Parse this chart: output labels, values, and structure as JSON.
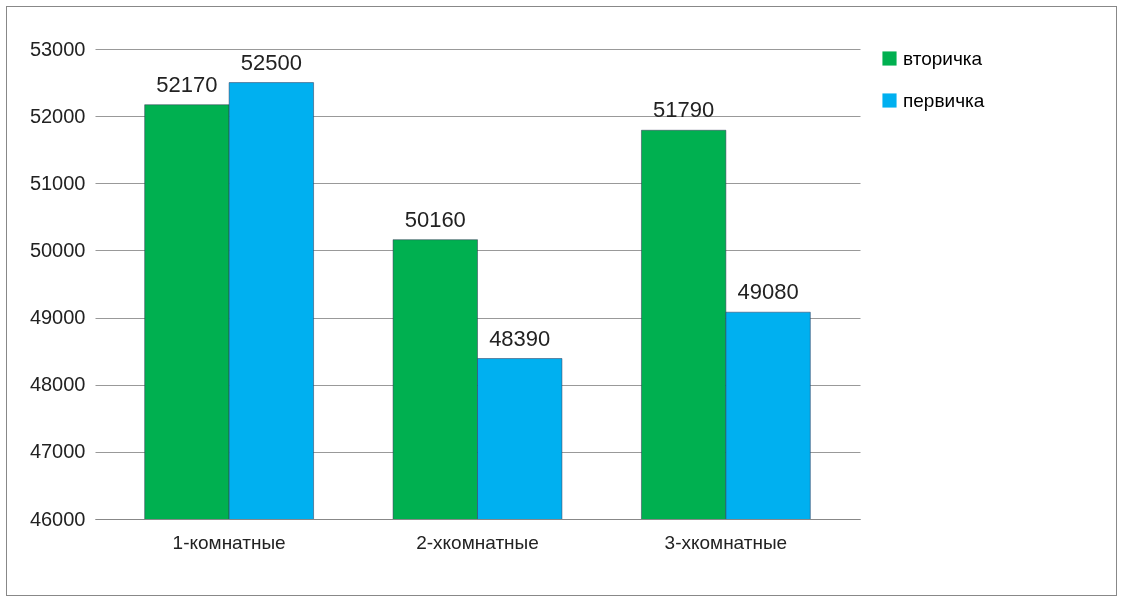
{
  "chart_data": {
    "type": "bar",
    "categories": [
      "1-комнатные",
      "2-хкомнатные",
      "3-хкомнатные"
    ],
    "series": [
      {
        "name": "вторичка",
        "color": "#00b050",
        "values": [
          52170,
          50160,
          51790
        ]
      },
      {
        "name": "первичка",
        "color": "#00b0f0",
        "values": [
          52500,
          48390,
          49080
        ]
      }
    ],
    "ylim": [
      46000,
      53000
    ],
    "yticks": [
      46000,
      47000,
      48000,
      49000,
      50000,
      51000,
      52000,
      53000
    ],
    "grid": "y",
    "legend": "right",
    "data_labels": true
  }
}
